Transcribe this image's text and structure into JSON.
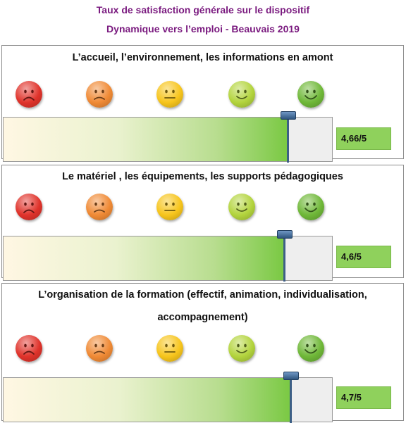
{
  "header": {
    "title_line1": "Taux de satisfaction générale sur le dispositif",
    "title_line2": "Dynamique vers l’emploi - Beauvais 2019"
  },
  "colors": {
    "title": "#7a1a7f",
    "score_box": "#8fd15c",
    "needle": "#3d5f86"
  },
  "scale": {
    "min": 0,
    "max": 5,
    "smileys": [
      {
        "icon": "very-sad-face-icon",
        "color": "#e0332b"
      },
      {
        "icon": "sad-face-icon",
        "color": "#f08a35"
      },
      {
        "icon": "neutral-face-icon",
        "color": "#f7c51c"
      },
      {
        "icon": "happy-face-icon",
        "color": "#b3d43d"
      },
      {
        "icon": "very-happy-face-icon",
        "color": "#6fb838"
      }
    ]
  },
  "chart_data": {
    "type": "bar",
    "categories": [
      "L’accueil, l’environnement, les informations en amont",
      "Le matériel , les équipements, les supports pédagogiques",
      "L’organisation de la formation (effectif, animation, individualisation, accompagnement)"
    ],
    "values": [
      4.66,
      4.6,
      4.7
    ],
    "value_labels": [
      "4,66/5",
      "4,6/5",
      "4,7/5"
    ],
    "xlim": [
      0,
      5
    ]
  },
  "panels": [
    {
      "title_lines": [
        "L’accueil, l’environnement, les informations en amont"
      ],
      "score_label": "4,66/5",
      "value": 4.66
    },
    {
      "title_lines": [
        "Le matériel , les équipements, les supports pédagogiques"
      ],
      "score_label": "4,6/5",
      "value": 4.6
    },
    {
      "title_lines": [
        "L’organisation de la formation (effectif, animation, individualisation,",
        "accompagnement)"
      ],
      "score_label": "4,7/5",
      "value": 4.7
    }
  ]
}
